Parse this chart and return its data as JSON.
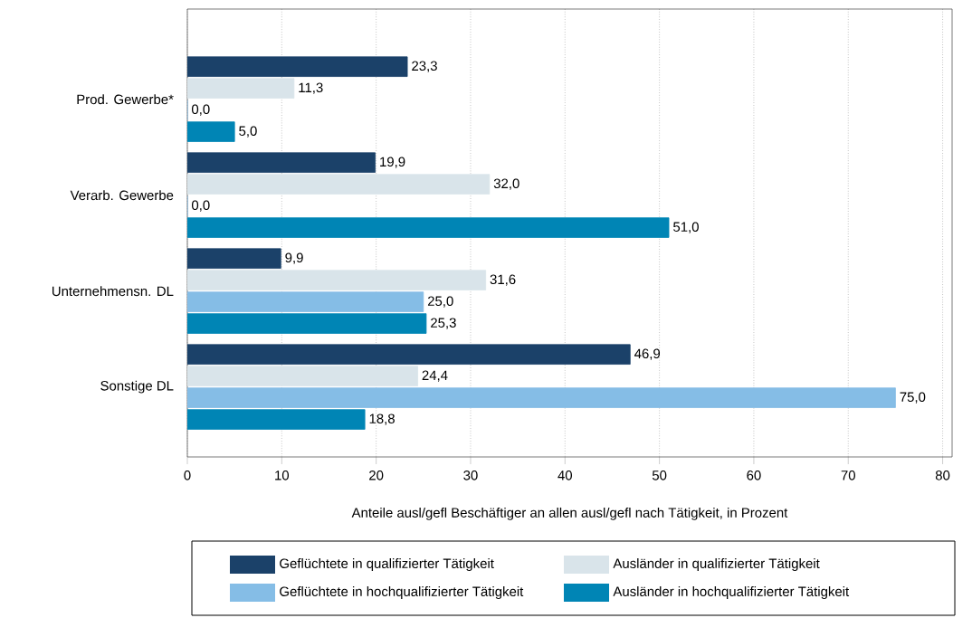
{
  "chart_data": {
    "type": "bar",
    "orientation": "horizontal",
    "xlabel": "Anteile ausl/gefl Beschäftiger an allen ausl/gefl nach Tätigkeit, in Prozent",
    "categories": [
      "Prod. Gewerbe*",
      "Verarb. Gewerbe",
      "Unternehmensn. DL",
      "Sonstige DL"
    ],
    "series": [
      {
        "name": "Geflüchtete in qualifizierter Tätigkeit",
        "color": "#1b4169",
        "values": [
          23.3,
          19.9,
          9.9,
          46.9
        ],
        "value_labels": [
          "23,3",
          "19,9",
          "9,9",
          "46,9"
        ]
      },
      {
        "name": "Ausländer in qualifizierter Tätigkeit",
        "color": "#d9e4ea",
        "values": [
          11.3,
          32.0,
          31.6,
          24.4
        ],
        "value_labels": [
          "11,3",
          "32,0",
          "31,6",
          "24,4"
        ]
      },
      {
        "name": "Geflüchtete in hochqualifizierter Tätigkeit",
        "color": "#85bde6",
        "values": [
          0.0,
          0.0,
          25.0,
          75.0
        ],
        "value_labels": [
          "0,0",
          "0,0",
          "25,0",
          "75,0"
        ]
      },
      {
        "name": "Ausländer in hochqualifizierter Tätigkeit",
        "color": "#0085b5",
        "values": [
          5.0,
          51.0,
          25.3,
          18.8
        ],
        "value_labels": [
          "5,0",
          "51,0",
          "25,3",
          "18,8"
        ]
      }
    ],
    "xlim": [
      0,
      81
    ],
    "xticks": [
      0,
      10,
      20,
      30,
      40,
      50,
      60,
      70,
      80
    ],
    "grid": "x",
    "legend": "bottom"
  }
}
